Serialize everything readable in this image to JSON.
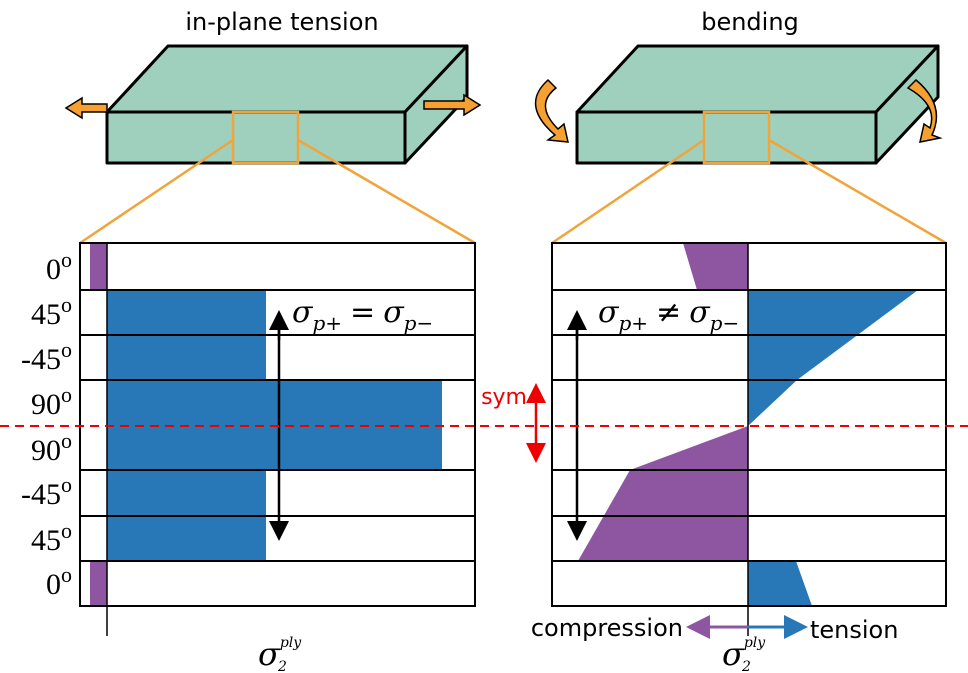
{
  "titles": {
    "left": "in-plane tension",
    "right": "bending"
  },
  "plies": {
    "labels": [
      "0",
      "45",
      "-45",
      "90",
      "90",
      "-45",
      "45",
      "0"
    ],
    "degree_mark": "o"
  },
  "equal_expr": {
    "symbol": "σ",
    "sub_left": "p+",
    "operator": "=",
    "sub_right": "p−"
  },
  "unequal_expr": {
    "symbol": "σ",
    "sub_left": "p+",
    "operator": "≠",
    "sub_right": "p−"
  },
  "sym_label": "sym",
  "legend": {
    "compression": "compression",
    "tension": "tension"
  },
  "axis_label": {
    "symbol": "σ",
    "sub": "2",
    "sup": "ply"
  }
}
